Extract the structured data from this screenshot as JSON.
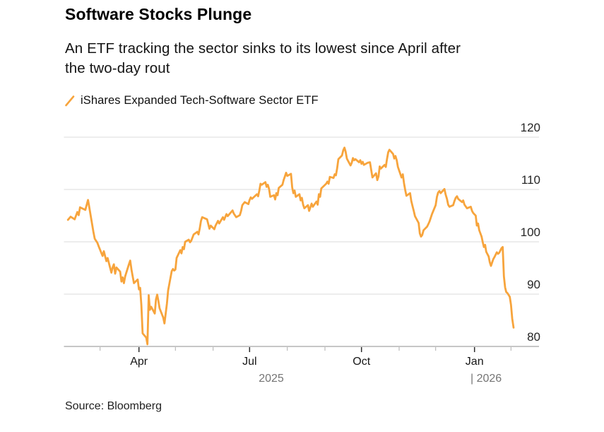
{
  "header": {
    "title": "Software Stocks Plunge",
    "subtitle_line1": "An ETF tracking the sector sinks to its lowest since April after",
    "subtitle_line2": "the two-day rout"
  },
  "legend": {
    "series_label": "iShares Expanded Tech-Software Sector ETF",
    "swatch_color": "#F7A43C"
  },
  "source": {
    "text": "Source: Bloomberg"
  },
  "chart_data": {
    "type": "line",
    "title": "Software Stocks Plunge",
    "series_name": "iShares Expanded Tech-Software Sector ETF",
    "line_color": "#F7A43C",
    "grid": true,
    "legend_position": "top-left",
    "y_axis": {
      "side": "right",
      "tick_labels": [
        "120",
        "110",
        "100",
        "90",
        "80"
      ],
      "tick_values": [
        120,
        110,
        100,
        90,
        80
      ],
      "range": [
        78,
        122
      ]
    },
    "x_axis": {
      "major_ticks": [
        {
          "label": "Apr",
          "month": "2025-04"
        },
        {
          "label": "Jul",
          "month": "2025-07"
        },
        {
          "label": "Oct",
          "month": "2025-10"
        },
        {
          "label": "Jan",
          "month": "2026-01"
        }
      ],
      "minor_tick_months": [
        "2025-03",
        "2025-05",
        "2025-06",
        "2025-08",
        "2025-09",
        "2025-11",
        "2025-12",
        "2026-02"
      ],
      "year_labels": [
        "2025",
        "| 2026"
      ]
    },
    "points": [
      [
        "2025-02-05",
        104.2
      ],
      [
        "2025-02-07",
        104.8
      ],
      [
        "2025-02-10",
        104.3
      ],
      [
        "2025-02-12",
        105.7
      ],
      [
        "2025-02-13",
        105.1
      ],
      [
        "2025-02-14",
        106.6
      ],
      [
        "2025-02-18",
        106.1
      ],
      [
        "2025-02-20",
        108.0
      ],
      [
        "2025-02-21",
        106.5
      ],
      [
        "2025-02-24",
        101.9
      ],
      [
        "2025-02-25",
        100.6
      ],
      [
        "2025-02-27",
        99.8
      ],
      [
        "2025-02-28",
        99.1
      ],
      [
        "2025-03-03",
        97.3
      ],
      [
        "2025-03-04",
        98.2
      ],
      [
        "2025-03-06",
        96.3
      ],
      [
        "2025-03-07",
        96.9
      ],
      [
        "2025-03-10",
        94.1
      ],
      [
        "2025-03-11",
        95.1
      ],
      [
        "2025-03-12",
        95.7
      ],
      [
        "2025-03-13",
        93.9
      ],
      [
        "2025-03-14",
        95.1
      ],
      [
        "2025-03-17",
        94.3
      ],
      [
        "2025-03-18",
        92.4
      ],
      [
        "2025-03-19",
        93.2
      ],
      [
        "2025-03-20",
        92.1
      ],
      [
        "2025-03-21",
        93.4
      ],
      [
        "2025-03-24",
        95.7
      ],
      [
        "2025-03-25",
        96.4
      ],
      [
        "2025-03-26",
        94.7
      ],
      [
        "2025-03-27",
        93.4
      ],
      [
        "2025-03-28",
        92.1
      ],
      [
        "2025-03-31",
        92.8
      ],
      [
        "2025-04-01",
        90.9
      ],
      [
        "2025-04-02",
        91.2
      ],
      [
        "2025-04-03",
        87.9
      ],
      [
        "2025-04-04",
        82.5
      ],
      [
        "2025-04-07",
        81.7
      ],
      [
        "2025-04-08",
        80.4
      ],
      [
        "2025-04-09",
        89.8
      ],
      [
        "2025-04-10",
        87.0
      ],
      [
        "2025-04-11",
        87.6
      ],
      [
        "2025-04-14",
        86.3
      ],
      [
        "2025-04-15",
        89.0
      ],
      [
        "2025-04-16",
        89.9
      ],
      [
        "2025-04-17",
        88.7
      ],
      [
        "2025-04-18",
        87.3
      ],
      [
        "2025-04-21",
        85.5
      ],
      [
        "2025-04-22",
        84.4
      ],
      [
        "2025-04-24",
        88.2
      ],
      [
        "2025-04-25",
        90.7
      ],
      [
        "2025-04-28",
        94.4
      ],
      [
        "2025-04-29",
        94.8
      ],
      [
        "2025-04-30",
        94.5
      ],
      [
        "2025-05-01",
        94.7
      ],
      [
        "2025-05-02",
        96.9
      ],
      [
        "2025-05-05",
        98.4
      ],
      [
        "2025-05-06",
        97.8
      ],
      [
        "2025-05-07",
        99.0
      ],
      [
        "2025-05-08",
        98.6
      ],
      [
        "2025-05-09",
        100.0
      ],
      [
        "2025-05-12",
        100.4
      ],
      [
        "2025-05-13",
        99.9
      ],
      [
        "2025-05-14",
        100.2
      ],
      [
        "2025-05-15",
        100.8
      ],
      [
        "2025-05-16",
        101.4
      ],
      [
        "2025-05-19",
        101.9
      ],
      [
        "2025-05-20",
        101.4
      ],
      [
        "2025-05-21",
        102.6
      ],
      [
        "2025-05-22",
        104.0
      ],
      [
        "2025-05-23",
        104.7
      ],
      [
        "2025-05-27",
        104.3
      ],
      [
        "2025-05-28",
        103.4
      ],
      [
        "2025-05-29",
        102.5
      ],
      [
        "2025-05-30",
        103.1
      ],
      [
        "2025-06-02",
        102.4
      ],
      [
        "2025-06-03",
        103.1
      ],
      [
        "2025-06-05",
        104.0
      ],
      [
        "2025-06-06",
        103.5
      ],
      [
        "2025-06-09",
        104.7
      ],
      [
        "2025-06-10",
        104.2
      ],
      [
        "2025-06-12",
        105.3
      ],
      [
        "2025-06-13",
        104.9
      ],
      [
        "2025-06-17",
        106.0
      ],
      [
        "2025-06-18",
        105.4
      ],
      [
        "2025-06-20",
        104.7
      ],
      [
        "2025-06-23",
        105.1
      ],
      [
        "2025-06-24",
        105.9
      ],
      [
        "2025-06-25",
        107.0
      ],
      [
        "2025-06-27",
        107.6
      ],
      [
        "2025-06-30",
        107.2
      ],
      [
        "2025-07-01",
        108.0
      ],
      [
        "2025-07-02",
        108.5
      ],
      [
        "2025-07-03",
        108.2
      ],
      [
        "2025-07-07",
        109.1
      ],
      [
        "2025-07-08",
        108.7
      ],
      [
        "2025-07-09",
        109.8
      ],
      [
        "2025-07-10",
        111.1
      ],
      [
        "2025-07-11",
        110.9
      ],
      [
        "2025-07-14",
        111.4
      ],
      [
        "2025-07-15",
        110.5
      ],
      [
        "2025-07-16",
        110.9
      ],
      [
        "2025-07-17",
        110.1
      ],
      [
        "2025-07-18",
        108.6
      ],
      [
        "2025-07-21",
        108.9
      ],
      [
        "2025-07-22",
        108.1
      ],
      [
        "2025-07-23",
        109.3
      ],
      [
        "2025-07-24",
        108.9
      ],
      [
        "2025-07-25",
        110.3
      ],
      [
        "2025-07-28",
        110.9
      ],
      [
        "2025-07-29",
        111.8
      ],
      [
        "2025-07-30",
        112.5
      ],
      [
        "2025-07-31",
        113.2
      ],
      [
        "2025-08-01",
        112.6
      ],
      [
        "2025-08-04",
        113.0
      ],
      [
        "2025-08-05",
        110.4
      ],
      [
        "2025-08-06",
        109.3
      ],
      [
        "2025-08-07",
        109.8
      ],
      [
        "2025-08-08",
        108.6
      ],
      [
        "2025-08-11",
        109.1
      ],
      [
        "2025-08-12",
        107.9
      ],
      [
        "2025-08-13",
        108.4
      ],
      [
        "2025-08-14",
        107.1
      ],
      [
        "2025-08-15",
        106.4
      ],
      [
        "2025-08-18",
        107.0
      ],
      [
        "2025-08-19",
        105.9
      ],
      [
        "2025-08-20",
        106.6
      ],
      [
        "2025-08-21",
        107.3
      ],
      [
        "2025-08-22",
        106.7
      ],
      [
        "2025-08-25",
        107.7
      ],
      [
        "2025-08-26",
        107.1
      ],
      [
        "2025-08-27",
        109.1
      ],
      [
        "2025-08-28",
        108.6
      ],
      [
        "2025-08-29",
        110.2
      ],
      [
        "2025-09-02",
        111.1
      ],
      [
        "2025-09-03",
        111.5
      ],
      [
        "2025-09-04",
        111.1
      ],
      [
        "2025-09-05",
        112.4
      ],
      [
        "2025-09-08",
        112.2
      ],
      [
        "2025-09-09",
        112.9
      ],
      [
        "2025-09-10",
        112.7
      ],
      [
        "2025-09-11",
        114.0
      ],
      [
        "2025-09-12",
        115.8
      ],
      [
        "2025-09-15",
        116.5
      ],
      [
        "2025-09-16",
        117.5
      ],
      [
        "2025-09-17",
        118.0
      ],
      [
        "2025-09-18",
        117.2
      ],
      [
        "2025-09-19",
        115.9
      ],
      [
        "2025-09-22",
        114.6
      ],
      [
        "2025-09-23",
        115.1
      ],
      [
        "2025-09-24",
        116.0
      ],
      [
        "2025-09-25",
        115.6
      ],
      [
        "2025-09-26",
        115.8
      ],
      [
        "2025-09-29",
        115.2
      ],
      [
        "2025-09-30",
        115.6
      ],
      [
        "2025-10-01",
        114.9
      ],
      [
        "2025-10-02",
        115.3
      ],
      [
        "2025-10-03",
        114.7
      ],
      [
        "2025-10-06",
        115.1
      ],
      [
        "2025-10-08",
        115.2
      ],
      [
        "2025-10-10",
        112.3
      ],
      [
        "2025-10-13",
        113.1
      ],
      [
        "2025-10-14",
        111.8
      ],
      [
        "2025-10-15",
        112.5
      ],
      [
        "2025-10-16",
        114.4
      ],
      [
        "2025-10-17",
        114.0
      ],
      [
        "2025-10-20",
        114.7
      ],
      [
        "2025-10-21",
        114.3
      ],
      [
        "2025-10-22",
        115.8
      ],
      [
        "2025-10-23",
        117.1
      ],
      [
        "2025-10-24",
        117.6
      ],
      [
        "2025-10-27",
        116.8
      ],
      [
        "2025-10-28",
        115.9
      ],
      [
        "2025-10-29",
        116.4
      ],
      [
        "2025-10-30",
        115.6
      ],
      [
        "2025-10-31",
        114.3
      ],
      [
        "2025-11-03",
        112.3
      ],
      [
        "2025-11-04",
        112.9
      ],
      [
        "2025-11-05",
        111.2
      ],
      [
        "2025-11-06",
        109.9
      ],
      [
        "2025-11-07",
        108.8
      ],
      [
        "2025-11-10",
        109.3
      ],
      [
        "2025-11-11",
        107.8
      ],
      [
        "2025-11-12",
        106.8
      ],
      [
        "2025-11-13",
        105.9
      ],
      [
        "2025-11-14",
        104.9
      ],
      [
        "2025-11-17",
        103.6
      ],
      [
        "2025-11-18",
        101.6
      ],
      [
        "2025-11-19",
        101.0
      ],
      [
        "2025-11-20",
        101.3
      ],
      [
        "2025-11-21",
        102.2
      ],
      [
        "2025-11-24",
        102.9
      ],
      [
        "2025-11-25",
        103.4
      ],
      [
        "2025-11-26",
        103.9
      ],
      [
        "2025-11-28",
        105.3
      ],
      [
        "2025-12-01",
        107.0
      ],
      [
        "2025-12-02",
        108.6
      ],
      [
        "2025-12-03",
        109.4
      ],
      [
        "2025-12-04",
        109.7
      ],
      [
        "2025-12-05",
        109.3
      ],
      [
        "2025-12-08",
        110.1
      ],
      [
        "2025-12-09",
        109.0
      ],
      [
        "2025-12-10",
        108.2
      ],
      [
        "2025-12-11",
        107.1
      ],
      [
        "2025-12-12",
        106.7
      ],
      [
        "2025-12-15",
        107.0
      ],
      [
        "2025-12-16",
        107.8
      ],
      [
        "2025-12-17",
        108.4
      ],
      [
        "2025-12-18",
        108.7
      ],
      [
        "2025-12-19",
        108.2
      ],
      [
        "2025-12-22",
        107.6
      ],
      [
        "2025-12-23",
        107.9
      ],
      [
        "2025-12-24",
        107.1
      ],
      [
        "2025-12-26",
        106.4
      ],
      [
        "2025-12-29",
        106.7
      ],
      [
        "2025-12-30",
        105.9
      ],
      [
        "2025-12-31",
        105.5
      ],
      [
        "2026-01-02",
        105.0
      ],
      [
        "2026-01-03",
        103.1
      ],
      [
        "2026-01-04",
        103.5
      ],
      [
        "2026-01-05",
        102.2
      ],
      [
        "2026-01-07",
        101.0
      ],
      [
        "2026-01-08",
        99.9
      ],
      [
        "2026-01-09",
        99.0
      ],
      [
        "2026-01-10",
        99.4
      ],
      [
        "2026-01-11",
        98.1
      ],
      [
        "2026-01-13",
        97.2
      ],
      [
        "2026-01-14",
        96.1
      ],
      [
        "2026-01-15",
        95.4
      ],
      [
        "2026-01-17",
        96.7
      ],
      [
        "2026-01-18",
        97.1
      ],
      [
        "2026-01-20",
        98.0
      ],
      [
        "2026-01-21",
        97.7
      ],
      [
        "2026-01-22",
        97.9
      ],
      [
        "2026-01-24",
        98.8
      ],
      [
        "2026-01-25",
        99.0
      ],
      [
        "2026-01-26",
        93.4
      ],
      [
        "2026-01-27",
        91.3
      ],
      [
        "2026-01-28",
        90.4
      ],
      [
        "2026-01-29",
        90.2
      ],
      [
        "2026-01-31",
        89.5
      ],
      [
        "2026-02-01",
        88.0
      ],
      [
        "2026-02-02",
        85.3
      ],
      [
        "2026-02-03",
        83.6
      ]
    ]
  }
}
